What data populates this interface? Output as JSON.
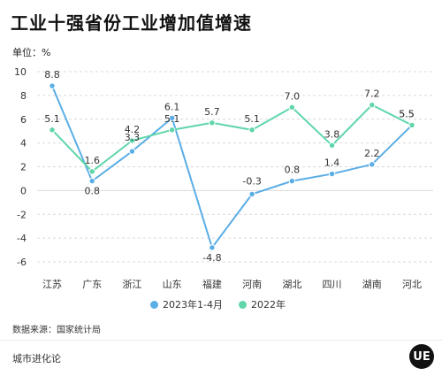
{
  "header": {
    "title": "工业十强省份工业增加值增速",
    "unit": "单位：%"
  },
  "footer": {
    "source": "数据来源：国家统计局",
    "brand": "城市进化论",
    "logo_text": "UE"
  },
  "colors": {
    "series_2023": "#5aaee6",
    "series_2022": "#5fd6aa",
    "grid": "#d9d9d9",
    "axis_text": "#333333"
  },
  "chart_data": {
    "type": "line",
    "title": "工业十强省份工业增加值增速",
    "ylabel": "单位：%",
    "categories": [
      "江苏",
      "广东",
      "浙江",
      "山东",
      "福建",
      "河南",
      "湖北",
      "四川",
      "湖南",
      "河北"
    ],
    "ylim": [
      -6,
      10
    ],
    "yticks": [
      -6,
      -4,
      -2,
      0,
      2,
      4,
      6,
      8,
      10
    ],
    "grid": true,
    "legend_position": "bottom",
    "series": [
      {
        "name": "2023年1-4月",
        "color": "#5aaee6",
        "values": [
          8.8,
          0.8,
          3.3,
          6.1,
          -4.8,
          -0.3,
          0.8,
          1.4,
          2.2,
          5.5
        ],
        "labels": [
          "8.8",
          "0.8",
          "3.3",
          "6.1",
          "-4.8",
          "-0.3",
          "0.8",
          "1.4",
          "2.2",
          "5.5"
        ]
      },
      {
        "name": "2022年",
        "color": "#5fd6aa",
        "values": [
          5.1,
          1.6,
          4.2,
          5.1,
          5.7,
          5.1,
          7.0,
          3.8,
          7.2,
          5.5
        ],
        "labels": [
          "5.1",
          "1.6",
          "4.2",
          "5.1",
          "5.7",
          "5.1",
          "7.0",
          "3.8",
          "7.2",
          "5.5"
        ]
      }
    ]
  }
}
